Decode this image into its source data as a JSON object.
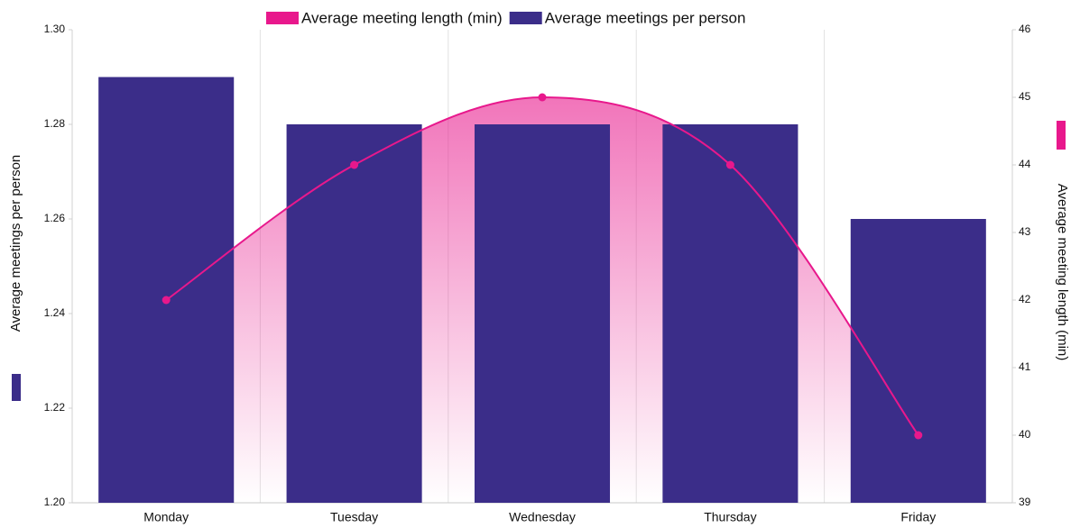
{
  "chart_data": {
    "type": "combo",
    "categories": [
      "Monday",
      "Tuesday",
      "Wednesday",
      "Thursday",
      "Friday"
    ],
    "series": [
      {
        "name": "Average meeting length (min)",
        "type": "line",
        "axis": "y2",
        "color": "#e8188c",
        "values": [
          42,
          44,
          45,
          44,
          40
        ]
      },
      {
        "name": "Average meetings per person",
        "type": "bar",
        "axis": "y",
        "color": "#3b2d89",
        "values": [
          1.29,
          1.28,
          1.28,
          1.28,
          1.26
        ]
      }
    ],
    "y_label": "Average meetings per person",
    "y2_label": "Average meeting length (min)",
    "ylim": [
      1.2,
      1.3
    ],
    "yticks": [
      {
        "value": 1.2,
        "label": "1.20"
      },
      1.22,
      1.24,
      1.26,
      1.28,
      {
        "value": 1.3,
        "label": "1.30"
      }
    ],
    "y2lim": [
      39,
      46
    ],
    "y2ticks": [
      39,
      40,
      41,
      42,
      43,
      44,
      45,
      46
    ],
    "grid": true,
    "legend": "top"
  }
}
